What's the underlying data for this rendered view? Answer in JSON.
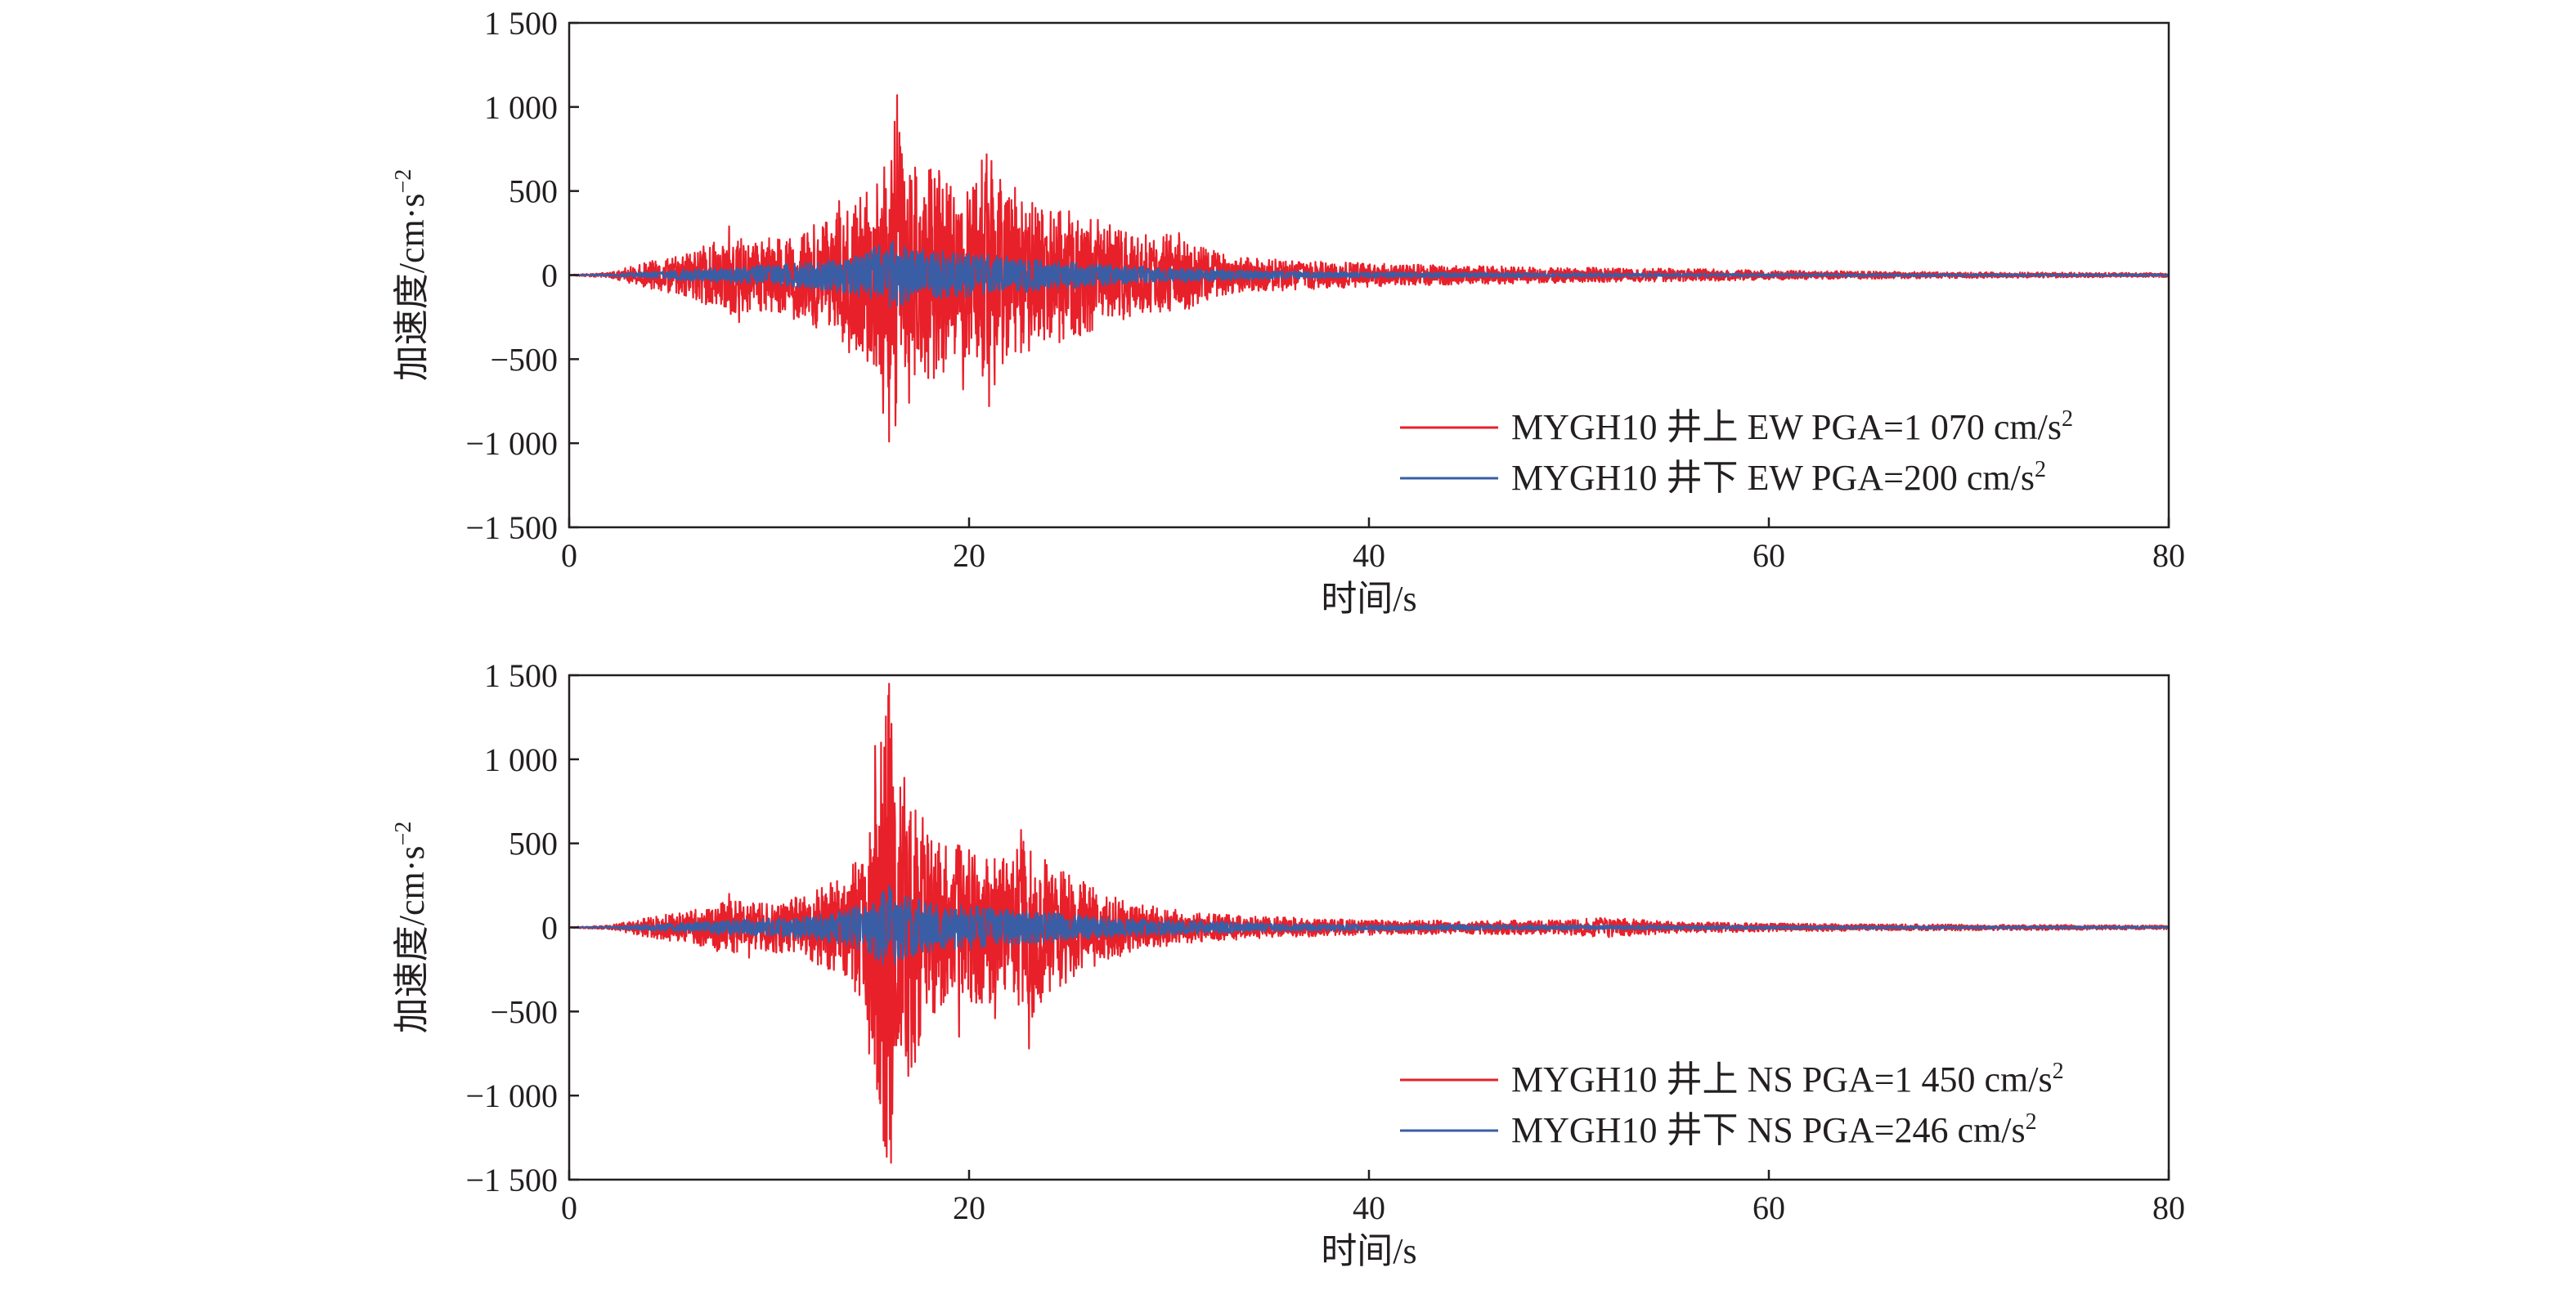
{
  "chart_data": [
    {
      "type": "line",
      "xlabel": "时间/s",
      "ylabel": "加速度/cm·s",
      "ylabel_exponent": "−2",
      "xlim": [
        0,
        80
      ],
      "ylim": [
        -1500,
        1500
      ],
      "x_ticks": [
        "0",
        "20",
        "40",
        "60",
        "80"
      ],
      "y_ticks": [
        "−1 500",
        "−1 000",
        "−500",
        "0",
        "500",
        "1 000",
        "1 500"
      ],
      "grid": false,
      "legend_position": "bottom-right",
      "series": [
        {
          "name": "MYGH10 井上 EW PGA=1 070 cm/s",
          "name_superscript": "2",
          "color": "#e8202a",
          "pga": 1070,
          "envelope": [
            [
              0,
              2
            ],
            [
              2,
              15
            ],
            [
              4,
              80
            ],
            [
              6,
              130
            ],
            [
              8,
              250
            ],
            [
              10,
              220
            ],
            [
              12,
              300
            ],
            [
              14,
              420
            ],
            [
              15,
              520
            ],
            [
              16,
              680
            ],
            [
              16.4,
              1070
            ],
            [
              17,
              620
            ],
            [
              18,
              640
            ],
            [
              19,
              560
            ],
            [
              20,
              520
            ],
            [
              21,
              800
            ],
            [
              22,
              480
            ],
            [
              24,
              420
            ],
            [
              26,
              360
            ],
            [
              28,
              250
            ],
            [
              30,
              240
            ],
            [
              31,
              200
            ],
            [
              33,
              110
            ],
            [
              36,
              90
            ],
            [
              40,
              70
            ],
            [
              45,
              55
            ],
            [
              50,
              45
            ],
            [
              55,
              40
            ],
            [
              60,
              28
            ],
            [
              65,
              22
            ],
            [
              70,
              18
            ],
            [
              75,
              15
            ],
            [
              80,
              12
            ]
          ],
          "peaks": [
            [
              16.4,
              1070
            ],
            [
              16.0,
              -990
            ],
            [
              21.0,
              820
            ],
            [
              21.0,
              -780
            ],
            [
              17.3,
              640
            ],
            [
              17.0,
              -760
            ],
            [
              15.4,
              540
            ],
            [
              15.7,
              -820
            ],
            [
              18.5,
              620
            ],
            [
              19.7,
              -680
            ],
            [
              22.3,
              520
            ],
            [
              23.0,
              -450
            ],
            [
              13.5,
              440
            ],
            [
              14.0,
              -460
            ],
            [
              8.0,
              290
            ],
            [
              8.5,
              -280
            ],
            [
              30.5,
              250
            ],
            [
              30.8,
              -200
            ],
            [
              25.0,
              380
            ],
            [
              25.5,
              -350
            ]
          ]
        },
        {
          "name": "MYGH10 井下 EW PGA=200 cm/s",
          "name_superscript": "2",
          "color": "#3a5ea6",
          "pga": 200,
          "envelope": [
            [
              0,
              1
            ],
            [
              2,
              6
            ],
            [
              4,
              20
            ],
            [
              6,
              35
            ],
            [
              8,
              50
            ],
            [
              10,
              60
            ],
            [
              12,
              80
            ],
            [
              14,
              110
            ],
            [
              16,
              200
            ],
            [
              18,
              150
            ],
            [
              20,
              130
            ],
            [
              22,
              110
            ],
            [
              24,
              90
            ],
            [
              26,
              70
            ],
            [
              28,
              55
            ],
            [
              30,
              45
            ],
            [
              35,
              25
            ],
            [
              40,
              18
            ],
            [
              50,
              12
            ],
            [
              60,
              9
            ],
            [
              70,
              7
            ],
            [
              80,
              6
            ]
          ],
          "peaks": [
            [
              16.2,
              200
            ],
            [
              16.6,
              -170
            ]
          ]
        }
      ]
    },
    {
      "type": "line",
      "xlabel": "时间/s",
      "ylabel": "加速度/cm·s",
      "ylabel_exponent": "−2",
      "xlim": [
        0,
        80
      ],
      "ylim": [
        -1500,
        1500
      ],
      "x_ticks": [
        "0",
        "20",
        "40",
        "60",
        "80"
      ],
      "y_ticks": [
        "−1 500",
        "−1 000",
        "−500",
        "0",
        "500",
        "1 000",
        "1 500"
      ],
      "grid": false,
      "legend_position": "bottom-right",
      "series": [
        {
          "name": "MYGH10 井上 NS PGA=1 450 cm/s",
          "name_superscript": "2",
          "color": "#e8202a",
          "pga": 1450,
          "envelope": [
            [
              0,
              2
            ],
            [
              2,
              12
            ],
            [
              4,
              60
            ],
            [
              6,
              100
            ],
            [
              8,
              160
            ],
            [
              10,
              140
            ],
            [
              12,
              200
            ],
            [
              14,
              320
            ],
            [
              15,
              650
            ],
            [
              15.6,
              1200
            ],
            [
              16.0,
              1450
            ],
            [
              16.5,
              1100
            ],
            [
              17.0,
              900
            ],
            [
              18,
              550
            ],
            [
              19,
              500
            ],
            [
              20,
              480
            ],
            [
              21,
              450
            ],
            [
              22,
              420
            ],
            [
              23,
              580
            ],
            [
              24,
              400
            ],
            [
              26,
              250
            ],
            [
              28,
              150
            ],
            [
              30,
              110
            ],
            [
              32,
              80
            ],
            [
              36,
              60
            ],
            [
              40,
              45
            ],
            [
              45,
              40
            ],
            [
              50,
              45
            ],
            [
              52,
              60
            ],
            [
              55,
              35
            ],
            [
              60,
              25
            ],
            [
              65,
              20
            ],
            [
              70,
              18
            ],
            [
              75,
              15
            ],
            [
              80,
              12
            ]
          ],
          "peaks": [
            [
              16.0,
              1450
            ],
            [
              16.1,
              -1400
            ],
            [
              15.6,
              1100
            ],
            [
              15.8,
              -1300
            ],
            [
              15.3,
              1080
            ],
            [
              15.0,
              -750
            ],
            [
              17.3,
              -800
            ],
            [
              17.0,
              600
            ],
            [
              18.5,
              500
            ],
            [
              19.5,
              -650
            ],
            [
              22.6,
              580
            ],
            [
              23.0,
              -720
            ],
            [
              20.0,
              460
            ],
            [
              21.3,
              -540
            ],
            [
              14.6,
              320
            ],
            [
              14.3,
              -380
            ],
            [
              8.0,
              200
            ],
            [
              9.0,
              -180
            ],
            [
              27.5,
              150
            ]
          ]
        },
        {
          "name": "MYGH10 井下 NS PGA=246 cm/s",
          "name_superscript": "2",
          "color": "#3a5ea6",
          "pga": 246,
          "envelope": [
            [
              0,
              1
            ],
            [
              2,
              6
            ],
            [
              4,
              18
            ],
            [
              6,
              30
            ],
            [
              8,
              45
            ],
            [
              10,
              55
            ],
            [
              12,
              70
            ],
            [
              14,
              110
            ],
            [
              15.5,
              200
            ],
            [
              16,
              246
            ],
            [
              17,
              180
            ],
            [
              18,
              150
            ],
            [
              20,
              130
            ],
            [
              22,
              110
            ],
            [
              24,
              90
            ],
            [
              26,
              70
            ],
            [
              28,
              55
            ],
            [
              30,
              45
            ],
            [
              35,
              25
            ],
            [
              40,
              18
            ],
            [
              50,
              14
            ],
            [
              60,
              10
            ],
            [
              70,
              8
            ],
            [
              80,
              6
            ]
          ],
          "peaks": [
            [
              16.0,
              246
            ],
            [
              15.7,
              -220
            ]
          ]
        }
      ]
    }
  ]
}
